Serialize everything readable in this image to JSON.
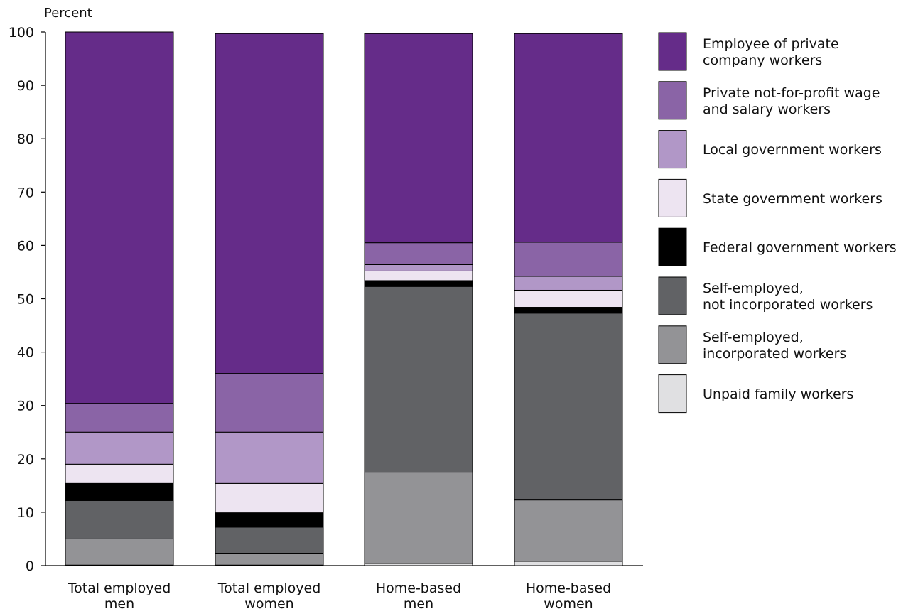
{
  "chart_data": {
    "type": "bar",
    "stacked": true,
    "ylabel": "Percent",
    "ylim": [
      0,
      100
    ],
    "yticks": [
      0,
      10,
      20,
      30,
      40,
      50,
      60,
      70,
      80,
      90,
      100
    ],
    "grid": false,
    "legend_position": "right",
    "categories": [
      [
        "Total employed",
        "men"
      ],
      [
        "Total employed",
        "women"
      ],
      [
        "Home-based",
        "men"
      ],
      [
        "Home-based",
        "women"
      ]
    ],
    "series": [
      {
        "name": [
          "Unpaid family workers"
        ],
        "color": "#e0e0e2",
        "values": [
          0.1,
          0.1,
          0.4,
          0.8
        ]
      },
      {
        "name": [
          "Self-employed,",
          "incorporated workers"
        ],
        "color": "#939396",
        "values": [
          4.9,
          2.1,
          17.1,
          11.5
        ]
      },
      {
        "name": [
          "Self-employed,",
          "not incorporated workers"
        ],
        "color": "#616265",
        "values": [
          7.2,
          5.0,
          34.8,
          35.0
        ]
      },
      {
        "name": [
          "Federal government workers"
        ],
        "color": "#000000",
        "values": [
          3.2,
          2.7,
          1.1,
          1.1
        ]
      },
      {
        "name": [
          "State government workers"
        ],
        "color": "#ede4f1",
        "values": [
          3.6,
          5.5,
          1.8,
          3.2
        ]
      },
      {
        "name": [
          "Local government workers"
        ],
        "color": "#b197c7",
        "values": [
          6.0,
          9.6,
          1.2,
          2.6
        ]
      },
      {
        "name": [
          "Private not-for-profit wage",
          "and salary workers"
        ],
        "color": "#8a64a6",
        "values": [
          5.4,
          11.0,
          4.1,
          6.4
        ]
      },
      {
        "name": [
          "Employee of private",
          "company workers"
        ],
        "color": "#652c89",
        "values": [
          69.6,
          63.7,
          39.2,
          39.1
        ]
      }
    ]
  }
}
